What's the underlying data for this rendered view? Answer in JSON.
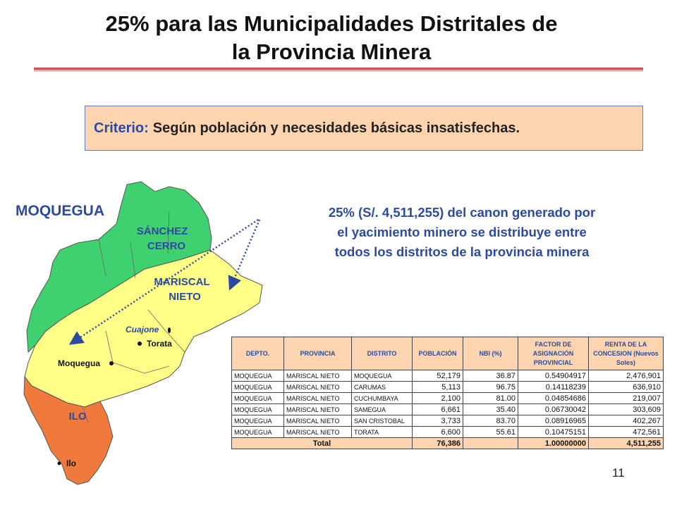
{
  "title_line1": "25% para las Municipalidades Distritales de",
  "title_line2": "la Provincia Minera",
  "criteria": {
    "label": "Criterio:",
    "text": "Según población y necesidades básicas insatisfechas."
  },
  "region_label": "MOQUEGUA",
  "description": {
    "line1": "25% (S/. 4,511,255) del canon generado por",
    "line2": "el yacimiento minero se distribuye entre",
    "line3": "todos los  distritos de la provincia minera"
  },
  "map": {
    "colors": {
      "sanchez_cerro": "#3fd16f",
      "mariscal_nieto": "#ffff88",
      "ilo": "#f07a3c",
      "labels": "#2c4aa0",
      "arrows": "#2c4aa0"
    },
    "labels": {
      "sanchez_cerro_1": "SÁNCHEZ",
      "sanchez_cerro_2": "CERRO",
      "mariscal_nieto_1": "MARISCAL",
      "mariscal_nieto_2": "NIETO",
      "ilo": "ILO"
    },
    "places": {
      "cuajone": "Cuajone",
      "torata": "Torata",
      "moquegua": "Moquegua",
      "ilo_town": "Ilo"
    }
  },
  "table": {
    "headers": [
      "DEPTO.",
      "PROVINCIA",
      "DISTRITO",
      "POBLACIÓN",
      "NBI (%)",
      "FACTOR DE ASIGNACIÓN PROVINCIAL",
      "RENTA DE LA CONCESION (Nuevos Soles)"
    ],
    "rows": [
      [
        "MOQUEGUA",
        "MARISCAL NIETO",
        "MOQUEGUA",
        "52,179",
        "36.87",
        "0.54904917",
        "2,476,901"
      ],
      [
        "MOQUEGUA",
        "MARISCAL NIETO",
        "CARUMAS",
        "5,113",
        "96.75",
        "0.14118239",
        "636,910"
      ],
      [
        "MOQUEGUA",
        "MARISCAL NIETO",
        "CUCHUMBAYA",
        "2,100",
        "81.00",
        "0.04854686",
        "219,007"
      ],
      [
        "MOQUEGUA",
        "MARISCAL NIETO",
        "SAMEGUA",
        "6,661",
        "35.40",
        "0.06730042",
        "303,609"
      ],
      [
        "MOQUEGUA",
        "MARISCAL NIETO",
        "SAN CRISTOBAL",
        "3,733",
        "83.70",
        "0.08916965",
        "402,267"
      ],
      [
        "MOQUEGUA",
        "MARISCAL NIETO",
        "TORATA",
        "6,600",
        "55.61",
        "0.10475151",
        "472,561"
      ]
    ],
    "total": {
      "label": "Total",
      "poblacion": "76,386",
      "factor": "1.00000000",
      "renta": "4,511,255"
    }
  },
  "page_number": "11"
}
